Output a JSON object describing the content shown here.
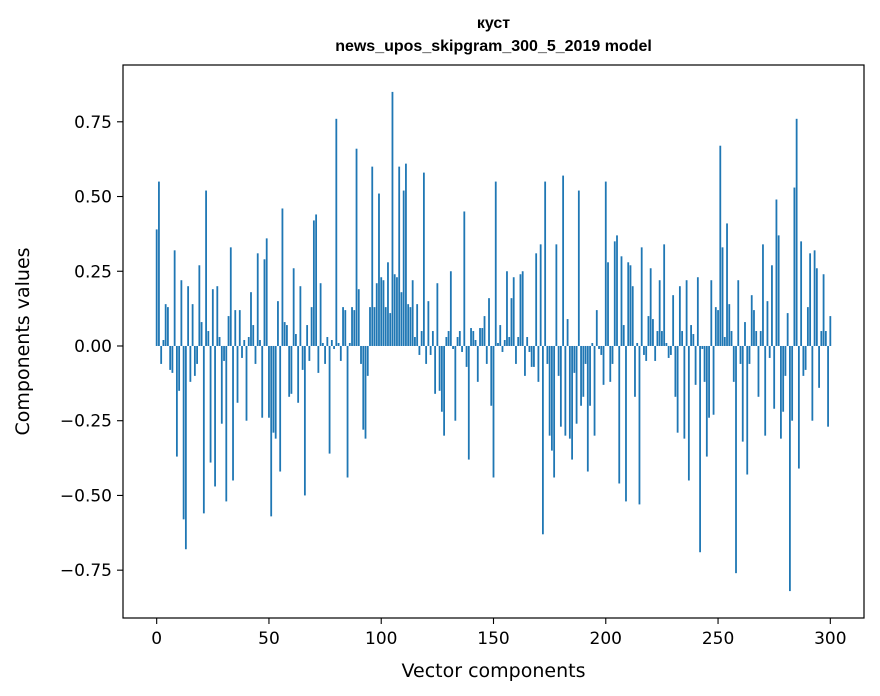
{
  "chart_data": {
    "type": "bar",
    "title_line1": "куст",
    "title_line2": "news_upos_skipgram_300_5_2019 model",
    "xlabel": "Vector components",
    "ylabel": "Components values",
    "xlim": [
      -15,
      315
    ],
    "ylim": [
      -0.91,
      0.94
    ],
    "xticks": [
      0,
      50,
      100,
      150,
      200,
      250,
      300
    ],
    "xtick_labels": [
      "0",
      "50",
      "100",
      "150",
      "200",
      "250",
      "300"
    ],
    "yticks": [
      -0.75,
      -0.5,
      -0.25,
      0.0,
      0.25,
      0.5,
      0.75
    ],
    "ytick_labels": [
      "−0.75",
      "−0.50",
      "−0.25",
      "0.00",
      "0.25",
      "0.50",
      "0.75"
    ],
    "bar_color": "#1f77b4",
    "series": [
      {
        "name": "куст",
        "values": [
          0.39,
          0.55,
          -0.06,
          0.02,
          0.14,
          0.13,
          -0.08,
          -0.09,
          0.32,
          -0.37,
          -0.15,
          0.22,
          -0.58,
          -0.68,
          0.2,
          -0.12,
          0.14,
          -0.1,
          -0.06,
          0.27,
          0.08,
          -0.56,
          0.52,
          0.05,
          -0.39,
          0.19,
          -0.47,
          0.2,
          0.03,
          -0.26,
          -0.05,
          -0.52,
          0.1,
          0.33,
          -0.45,
          0.12,
          -0.19,
          0.12,
          -0.04,
          0.02,
          -0.25,
          0.03,
          0.18,
          0.07,
          -0.06,
          0.31,
          0.02,
          -0.24,
          0.29,
          0.36,
          -0.24,
          -0.57,
          -0.29,
          -0.31,
          0.15,
          -0.42,
          0.46,
          0.08,
          0.07,
          -0.17,
          -0.16,
          0.26,
          0.04,
          -0.19,
          0.2,
          -0.08,
          -0.5,
          0.07,
          -0.05,
          0.13,
          0.42,
          0.44,
          -0.09,
          0.21,
          0.01,
          -0.06,
          0.03,
          -0.36,
          0.02,
          -0.01,
          0.76,
          0.01,
          -0.05,
          0.13,
          0.12,
          -0.44,
          0.01,
          0.13,
          0.12,
          0.66,
          0.19,
          -0.06,
          -0.28,
          -0.31,
          -0.1,
          0.13,
          0.6,
          0.13,
          0.21,
          0.51,
          0.23,
          0.22,
          0.13,
          0.28,
          0.11,
          0.85,
          0.24,
          0.23,
          0.6,
          0.18,
          0.52,
          0.61,
          0.14,
          0.13,
          0.22,
          0.03,
          0.14,
          -0.03,
          0.05,
          0.58,
          -0.06,
          0.15,
          -0.03,
          0.05,
          -0.16,
          0.21,
          -0.15,
          -0.22,
          -0.3,
          0.03,
          0.05,
          0.25,
          -0.01,
          -0.25,
          0.03,
          0.05,
          -0.02,
          0.45,
          -0.07,
          -0.38,
          0.06,
          0.05,
          0.02,
          -0.12,
          0.06,
          0.06,
          0.1,
          -0.06,
          0.16,
          -0.2,
          -0.44,
          0.55,
          0.01,
          0.07,
          -0.02,
          0.02,
          0.25,
          0.03,
          0.16,
          0.23,
          -0.06,
          0.03,
          0.24,
          0.25,
          -0.1,
          0.03,
          -0.02,
          -0.07,
          -0.07,
          0.31,
          -0.12,
          0.34,
          -0.63,
          0.55,
          -0.06,
          -0.3,
          -0.35,
          -0.44,
          0.34,
          -0.1,
          -0.27,
          0.57,
          -0.3,
          0.09,
          -0.31,
          -0.38,
          -0.09,
          -0.26,
          0.52,
          -0.2,
          -0.17,
          -0.06,
          -0.42,
          -0.2,
          0.01,
          -0.3,
          0.12,
          -0.01,
          -0.03,
          -0.13,
          0.55,
          0.28,
          -0.12,
          -0.06,
          0.35,
          0.37,
          -0.46,
          0.3,
          0.07,
          -0.52,
          0.28,
          0.27,
          0.2,
          -0.17,
          0.01,
          -0.53,
          0.33,
          -0.03,
          -0.05,
          0.1,
          0.26,
          0.09,
          -0.05,
          0.05,
          0.22,
          0.05,
          0.34,
          0.01,
          -0.04,
          -0.03,
          0.17,
          -0.17,
          -0.29,
          0.2,
          0.05,
          -0.31,
          0.22,
          -0.45,
          0.07,
          0.04,
          -0.13,
          0.23,
          -0.69,
          -0.01,
          -0.12,
          -0.37,
          -0.24,
          0.22,
          -0.23,
          0.13,
          0.12,
          0.67,
          0.33,
          0.03,
          0.41,
          0.14,
          0.05,
          -0.12,
          -0.76,
          0.22,
          -0.06,
          -0.32,
          0.08,
          -0.43,
          -0.06,
          0.17,
          0.12,
          0.05,
          -0.17,
          0.05,
          0.34,
          -0.3,
          0.15,
          -0.04,
          0.27,
          -0.21,
          0.49,
          0.37,
          -0.31,
          -0.22,
          -0.1,
          0.11,
          -0.82,
          -0.25,
          0.53,
          0.76,
          -0.41,
          0.35,
          -0.1,
          -0.08,
          0.13,
          0.31,
          -0.25,
          0.32,
          0.26,
          -0.14,
          0.05,
          0.24,
          0.05,
          -0.27,
          0.1
        ]
      }
    ]
  }
}
